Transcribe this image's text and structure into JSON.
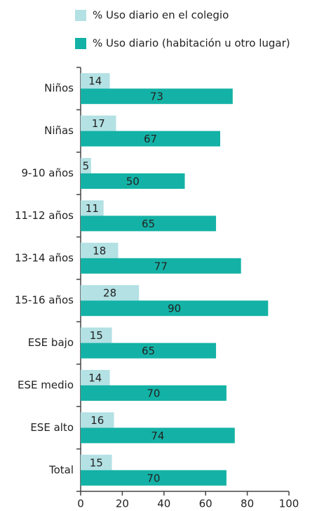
{
  "chart_data": {
    "type": "bar",
    "orientation": "horizontal",
    "categories": [
      "Niños",
      "Niñas",
      "9-10 años",
      "11-12 años",
      "13-14 años",
      "15-16 años",
      "ESE bajo",
      "ESE medio",
      "ESE alto",
      "Total"
    ],
    "series": [
      {
        "name": "% Uso diario en el colegio",
        "color": "#b3e1e4",
        "values": [
          14,
          17,
          5,
          11,
          18,
          28,
          15,
          14,
          16,
          15
        ]
      },
      {
        "name": "% Uso diario (habitación u otro lugar)",
        "color": "#14b2a6",
        "values": [
          73,
          67,
          50,
          65,
          77,
          90,
          65,
          70,
          74,
          70
        ]
      }
    ],
    "xlim": [
      0,
      100
    ],
    "xticks": [
      0,
      20,
      40,
      60,
      80,
      100
    ]
  }
}
